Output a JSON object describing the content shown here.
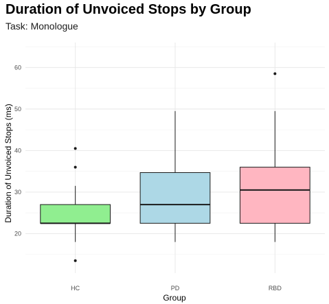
{
  "chart_data": {
    "type": "box",
    "title": "Duration of Unvoiced Stops by Group",
    "subtitle": "Task: Monologue",
    "xlabel": "Group",
    "ylabel": "Duration of Unvoiced Stops (ms)",
    "categories": [
      "HC",
      "PD",
      "RBD"
    ],
    "ylim": [
      10.5,
      66
    ],
    "yticks": [
      20,
      30,
      40,
      50,
      60
    ],
    "grid": true,
    "boxes": [
      {
        "group": "HC",
        "color": "#90EE90",
        "q1": 22.5,
        "median": 22.5,
        "q3": 27,
        "whisker_low": 18,
        "whisker_high": 31.5,
        "outliers": [
          13.5,
          36,
          40.5
        ]
      },
      {
        "group": "PD",
        "color": "#ADD8E6",
        "q1": 22.5,
        "median": 27,
        "q3": 34.7,
        "whisker_low": 18,
        "whisker_high": 49.5,
        "outliers": []
      },
      {
        "group": "RBD",
        "color": "#FFB6C1",
        "q1": 22.5,
        "median": 30.5,
        "q3": 36,
        "whisker_low": 18,
        "whisker_high": 49.5,
        "outliers": [
          58.5
        ]
      }
    ]
  }
}
